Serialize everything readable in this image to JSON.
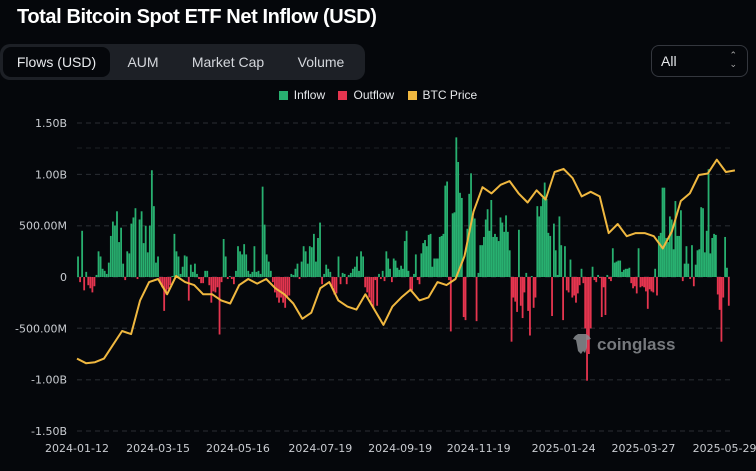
{
  "header": {
    "title": "Total Bitcoin Spot ETF Net Inflow (USD)"
  },
  "tabs": [
    {
      "label": "Flows (USD)",
      "active": true
    },
    {
      "label": "AUM",
      "active": false
    },
    {
      "label": "Market Cap",
      "active": false
    },
    {
      "label": "Volume",
      "active": false
    }
  ],
  "range_select": {
    "value": "All",
    "icon": "chevron-up-down-icon"
  },
  "watermark": {
    "text": "coinglass",
    "icon": "coinglass-logo-icon"
  },
  "colors": {
    "inflow": "#28b070",
    "outflow": "#e5354f",
    "price": "#f0b840",
    "grid": "#2a2d33",
    "background": "#05070b"
  },
  "chart_data": {
    "type": "bar",
    "title": "Total Bitcoin Spot ETF Net Inflow (USD)",
    "legend": [
      {
        "label": "Inflow",
        "color": "#28b070"
      },
      {
        "label": "Outflow",
        "color": "#e5354f"
      },
      {
        "label": "BTC Price",
        "color": "#f0b840"
      }
    ],
    "legend_position": "top-center",
    "x_range": [
      "2024-01-12",
      "2025-06-03"
    ],
    "xticks": [
      "2024-01-12",
      "2024-03-15",
      "2024-05-16",
      "2024-07-19",
      "2024-09-19",
      "2024-11-19",
      "2025-01-24",
      "2025-03-27",
      "2025-05-29"
    ],
    "ylim_musd": [
      -1500,
      1500
    ],
    "yticks": [
      {
        "value": 1500,
        "label": "1.50B"
      },
      {
        "value": 1000,
        "label": "1.00B"
      },
      {
        "value": 500,
        "label": "500.00M"
      },
      {
        "value": 0,
        "label": "0"
      },
      {
        "value": -500,
        "label": "-500.00M"
      },
      {
        "value": -1000,
        "label": "-1.00B"
      },
      {
        "value": -1500,
        "label": "-1.50B"
      }
    ],
    "grid": true,
    "flows_unit": "USD millions",
    "flows_segments": [
      {
        "from": "2024-01-12",
        "to": "2024-08-30",
        "values": [
          200,
          -50,
          450,
          -130,
          50,
          -80,
          -110,
          -150,
          -90,
          20,
          250,
          200,
          80,
          60,
          30,
          140,
          400,
          540,
          500,
          640,
          340,
          480,
          130,
          -30,
          250,
          230,
          520,
          580,
          670,
          -20,
          560,
          640,
          330,
          500,
          240,
          500,
          1040,
          690,
          140,
          200,
          -60,
          -100,
          -330,
          -170,
          -120,
          -80,
          10,
          420,
          250,
          200,
          30,
          100,
          210,
          200,
          -230,
          120,
          50,
          130,
          30,
          -20,
          -60,
          -60,
          60,
          60,
          -80,
          -250,
          -140,
          -150,
          -100,
          -560,
          -50,
          370,
          200,
          -20,
          10,
          -20,
          -70,
          60,
          300,
          250,
          220,
          320,
          220,
          60,
          30,
          50,
          300,
          50,
          60,
          30,
          880,
          510,
          220,
          150,
          60,
          -50,
          -150,
          -200,
          -250,
          -200,
          -250,
          -300,
          -200,
          -180,
          30,
          20,
          80,
          130,
          -20,
          150,
          300,
          250,
          130,
          300,
          290,
          420,
          150,
          380,
          530,
          -70,
          30,
          120,
          80,
          50,
          -100,
          -170,
          -160,
          200,
          -70,
          40,
          30,
          -70,
          20,
          40,
          80,
          100,
          200,
          60,
          250,
          200,
          -100,
          -150,
          -200,
          -250,
          -300
        ]
      },
      {
        "from": "2024-08-30",
        "to": "2025-06-02",
        "values": [
          -30,
          -280,
          30,
          -20,
          60,
          -40,
          250,
          180,
          80,
          -50,
          180,
          160,
          90,
          70,
          110,
          80,
          350,
          450,
          60,
          -130,
          -130,
          30,
          220,
          -30,
          -70,
          230,
          330,
          360,
          300,
          410,
          420,
          100,
          180,
          180,
          180,
          390,
          400,
          420,
          890,
          930,
          -30,
          -530,
          620,
          630,
          1360,
          1120,
          820,
          770,
          -390,
          -420,
          470,
          810,
          1010,
          590,
          570,
          -430,
          40,
          310,
          310,
          390,
          560,
          660,
          450,
          750,
          390,
          420,
          390,
          350,
          580,
          530,
          440,
          600,
          440,
          260,
          -630,
          -200,
          -240,
          -340,
          460,
          -280,
          -400,
          -150,
          40,
          -330,
          -570,
          10,
          -300,
          -200,
          690,
          590,
          690,
          770,
          920,
          760,
          430,
          400,
          -380,
          520,
          260,
          20,
          590,
          310,
          -420,
          300,
          -130,
          -150,
          170,
          -200,
          -180,
          -250,
          -160,
          -80,
          80,
          -60,
          -500,
          -1010,
          -750,
          -500,
          100,
          -30,
          -50,
          20,
          -10,
          -390,
          -100,
          -370,
          20,
          -20,
          -40,
          280,
          140,
          150,
          160,
          160,
          50,
          70,
          80,
          80,
          90,
          -60,
          -110,
          -90,
          -160,
          280,
          -100,
          -90,
          -100,
          -140,
          -310,
          -120,
          -140,
          -150,
          80,
          -180,
          400,
          430,
          870,
          870,
          380,
          340,
          590,
          560,
          270,
          740,
          400,
          400,
          650,
          -40,
          130,
          300,
          130,
          -20,
          310,
          -90,
          120,
          260,
          270,
          680,
          670,
          240,
          450,
          1050,
          230,
          380,
          420,
          410,
          -170,
          -320,
          -630,
          -200,
          390,
          90,
          -280
        ]
      }
    ],
    "btc_price": {
      "unit": "USD thousands",
      "start": "2024-01-12",
      "step_days": 7,
      "axis_range": [
        19,
        120
      ],
      "values": [
        43,
        41.5,
        41.8,
        43,
        47.5,
        52,
        51,
        62,
        68,
        69,
        64,
        70,
        68,
        67,
        64,
        64,
        62,
        61,
        67,
        69,
        67.5,
        69,
        66,
        64,
        61,
        56,
        58,
        66,
        68,
        62,
        60,
        59,
        64,
        59,
        54,
        60,
        63,
        65.5,
        62,
        63,
        68,
        67,
        69,
        76.5,
        91,
        99,
        97,
        99.8,
        101,
        97,
        94,
        98,
        95,
        104,
        105,
        102,
        96,
        97.5,
        96,
        84,
        87,
        83,
        84,
        84,
        83,
        79,
        84.5,
        94.5,
        97,
        103,
        103.5,
        108,
        104,
        104.5
      ]
    }
  }
}
